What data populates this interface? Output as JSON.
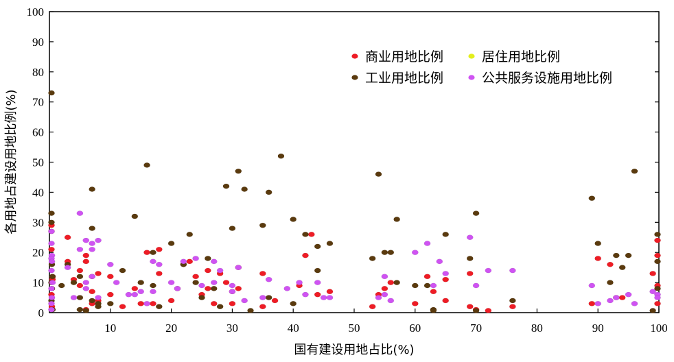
{
  "chart_data": {
    "type": "scatter",
    "xlabel": "国有建设用地占比(%)",
    "ylabel": "各用地占建设用地比例(%)",
    "xlim": [
      0,
      100
    ],
    "ylim": [
      0,
      100
    ],
    "x_ticks": [
      10,
      20,
      30,
      40,
      50,
      60,
      70,
      80,
      90,
      100
    ],
    "y_ticks": [
      0,
      10,
      20,
      30,
      40,
      50,
      60,
      70,
      80,
      90,
      100
    ],
    "grid": false,
    "legend": "top-right",
    "series": [
      {
        "name": "商业用地比例",
        "color": "#ee1c25",
        "points": [
          [
            0.2,
            29
          ],
          [
            0.3,
            27
          ],
          [
            0.3,
            21
          ],
          [
            0.5,
            12
          ],
          [
            0.3,
            6
          ],
          [
            0.4,
            2
          ],
          [
            0.5,
            11
          ],
          [
            3,
            25
          ],
          [
            3,
            17
          ],
          [
            4,
            11
          ],
          [
            5,
            14
          ],
          [
            5,
            9
          ],
          [
            6,
            19
          ],
          [
            6,
            17
          ],
          [
            7,
            12
          ],
          [
            7,
            7
          ],
          [
            8,
            13
          ],
          [
            6,
            1
          ],
          [
            7,
            3
          ],
          [
            8,
            4
          ],
          [
            10,
            12
          ],
          [
            10,
            6
          ],
          [
            12,
            2
          ],
          [
            14,
            8
          ],
          [
            15,
            3
          ],
          [
            16,
            20
          ],
          [
            17,
            3
          ],
          [
            18,
            13
          ],
          [
            18,
            21
          ],
          [
            20,
            4
          ],
          [
            21,
            8
          ],
          [
            22,
            16
          ],
          [
            23,
            17
          ],
          [
            24,
            12
          ],
          [
            25,
            6
          ],
          [
            26,
            14
          ],
          [
            26,
            8
          ],
          [
            27,
            3
          ],
          [
            28,
            13
          ],
          [
            29,
            10
          ],
          [
            30,
            7
          ],
          [
            30,
            3
          ],
          [
            31,
            15
          ],
          [
            31,
            8
          ],
          [
            35,
            13
          ],
          [
            35,
            2
          ],
          [
            37,
            4
          ],
          [
            41,
            9
          ],
          [
            42,
            19
          ],
          [
            43,
            26
          ],
          [
            44,
            6
          ],
          [
            46,
            7
          ],
          [
            53,
            2
          ],
          [
            54,
            6
          ],
          [
            55,
            8
          ],
          [
            56,
            10
          ],
          [
            60,
            3
          ],
          [
            62,
            12
          ],
          [
            63,
            7
          ],
          [
            65,
            11
          ],
          [
            65,
            4
          ],
          [
            69,
            13
          ],
          [
            69,
            2
          ],
          [
            70,
            1
          ],
          [
            72,
            0.5
          ],
          [
            76,
            2
          ],
          [
            89,
            3
          ],
          [
            90,
            18
          ],
          [
            92,
            16
          ],
          [
            93,
            5
          ],
          [
            94,
            5
          ],
          [
            99,
            13
          ],
          [
            100,
            24
          ],
          [
            100,
            19
          ],
          [
            100,
            9
          ],
          [
            100,
            3
          ]
        ]
      },
      {
        "name": "居住用地比例",
        "color": "#e3ee1c",
        "points": []
      },
      {
        "name": "工业用地比例",
        "color": "#5a3a0e",
        "points": [
          [
            0,
            73
          ],
          [
            0.2,
            33
          ],
          [
            0.3,
            30
          ],
          [
            0.4,
            16
          ],
          [
            0.5,
            12
          ],
          [
            0.2,
            10
          ],
          [
            0.4,
            8
          ],
          [
            0.3,
            4
          ],
          [
            0.5,
            1
          ],
          [
            2,
            9
          ],
          [
            3,
            16
          ],
          [
            4,
            10
          ],
          [
            5,
            5
          ],
          [
            5,
            1
          ],
          [
            5,
            12
          ],
          [
            6,
            0
          ],
          [
            7,
            41
          ],
          [
            7,
            28
          ],
          [
            7,
            4
          ],
          [
            8,
            2
          ],
          [
            8,
            3
          ],
          [
            10,
            3
          ],
          [
            12,
            14
          ],
          [
            14,
            32
          ],
          [
            15,
            10
          ],
          [
            16,
            49
          ],
          [
            17,
            20
          ],
          [
            17,
            9
          ],
          [
            18,
            2
          ],
          [
            20,
            23
          ],
          [
            22,
            16
          ],
          [
            23,
            26
          ],
          [
            24,
            10
          ],
          [
            25,
            5
          ],
          [
            26,
            18
          ],
          [
            27,
            8
          ],
          [
            28,
            2
          ],
          [
            29,
            42
          ],
          [
            30,
            28
          ],
          [
            31,
            47
          ],
          [
            32,
            41
          ],
          [
            33,
            0
          ],
          [
            35,
            29
          ],
          [
            36,
            40
          ],
          [
            36,
            5
          ],
          [
            38,
            52
          ],
          [
            40,
            31
          ],
          [
            40,
            3
          ],
          [
            42,
            26
          ],
          [
            44,
            22
          ],
          [
            44,
            14
          ],
          [
            46,
            23
          ],
          [
            53,
            18
          ],
          [
            54,
            46
          ],
          [
            55,
            20
          ],
          [
            56,
            20
          ],
          [
            57,
            31
          ],
          [
            57,
            10
          ],
          [
            60,
            9
          ],
          [
            62,
            9
          ],
          [
            63,
            1
          ],
          [
            63,
            0
          ],
          [
            65,
            26
          ],
          [
            69,
            18
          ],
          [
            70,
            33
          ],
          [
            70,
            0
          ],
          [
            76,
            4
          ],
          [
            89,
            38
          ],
          [
            90,
            23
          ],
          [
            92,
            10
          ],
          [
            93,
            19
          ],
          [
            94,
            15
          ],
          [
            95,
            19
          ],
          [
            96,
            47
          ],
          [
            99,
            0
          ],
          [
            100,
            26
          ],
          [
            100,
            17
          ],
          [
            100,
            8
          ]
        ]
      },
      {
        "name": "公共服务设施用地比例",
        "color": "#cf53f2",
        "points": [
          [
            0.2,
            27
          ],
          [
            0.3,
            23
          ],
          [
            0.4,
            19
          ],
          [
            0.2,
            18
          ],
          [
            0.4,
            17
          ],
          [
            0.3,
            14
          ],
          [
            0.5,
            10
          ],
          [
            0.3,
            8
          ],
          [
            0.4,
            5
          ],
          [
            0.3,
            3
          ],
          [
            0.2,
            1
          ],
          [
            3,
            15
          ],
          [
            4,
            5
          ],
          [
            5,
            33
          ],
          [
            5,
            21
          ],
          [
            6,
            24
          ],
          [
            6,
            10
          ],
          [
            6,
            8
          ],
          [
            7,
            23
          ],
          [
            7,
            21
          ],
          [
            7,
            12
          ],
          [
            8,
            24
          ],
          [
            8,
            5
          ],
          [
            10,
            16
          ],
          [
            11,
            10
          ],
          [
            13,
            6
          ],
          [
            14,
            6
          ],
          [
            15,
            7
          ],
          [
            16,
            3
          ],
          [
            17,
            7
          ],
          [
            17,
            17
          ],
          [
            18,
            16
          ],
          [
            20,
            10
          ],
          [
            21,
            8
          ],
          [
            22,
            17
          ],
          [
            24,
            18
          ],
          [
            25,
            9
          ],
          [
            27,
            17
          ],
          [
            27,
            10
          ],
          [
            28,
            14
          ],
          [
            30,
            9
          ],
          [
            30,
            7
          ],
          [
            31,
            15
          ],
          [
            32,
            4
          ],
          [
            35,
            5
          ],
          [
            36,
            11
          ],
          [
            39,
            8
          ],
          [
            41,
            10
          ],
          [
            42,
            6
          ],
          [
            44,
            10
          ],
          [
            45,
            5
          ],
          [
            46,
            5
          ],
          [
            54,
            5
          ],
          [
            55,
            6
          ],
          [
            55,
            12
          ],
          [
            56,
            4
          ],
          [
            60,
            20
          ],
          [
            62,
            23
          ],
          [
            63,
            9
          ],
          [
            64,
            17
          ],
          [
            65,
            13
          ],
          [
            69,
            25
          ],
          [
            70,
            9
          ],
          [
            72,
            14
          ],
          [
            76,
            14
          ],
          [
            89,
            9
          ],
          [
            90,
            3
          ],
          [
            92,
            4
          ],
          [
            93,
            5
          ],
          [
            95,
            6
          ],
          [
            96,
            3
          ],
          [
            99,
            7
          ],
          [
            100,
            6
          ],
          [
            100,
            5
          ]
        ]
      }
    ]
  }
}
